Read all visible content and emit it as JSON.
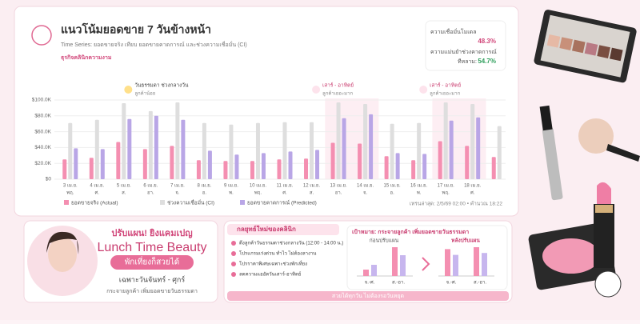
{
  "header": {
    "title": "แนวโน้มยอดขาย 7 วันข้างหน้า",
    "subtitle": "Time Series: ยอดขายจริง เทียบ ยอดขายคาดการณ์ และช่วงความเชื่อมั่น (CI)",
    "business": "ธุรกิจคลินิกความงาม"
  },
  "metrics": [
    {
      "label": "ความเชื่อมั่นโมเดล",
      "value": "48.3%"
    },
    {
      "label": "ความแม่นยำช่วงคาดการณ์",
      "sub": "ทีหลาม:",
      "value": "54.7%"
    }
  ],
  "chart_data": {
    "type": "bar",
    "categories": [
      "3 เม.ย.",
      "4 เม.ย.",
      "5 เม.ย.",
      "6 เม.ย.",
      "7 เม.ย.",
      "8 เม.ย.",
      "9 เม.ย.",
      "10 เม.ย.",
      "11 เม.ย.",
      "12 เม.ย.",
      "13 เม.ย.",
      "14 เม.ย.",
      "15 เม.ย.",
      "16 เม.ย.",
      "17 เม.ย.",
      "18 เม.ย.",
      null
    ],
    "weekdays": [
      "พฤ.",
      "ศ.",
      "ส.",
      "อา.",
      "จ.",
      "อ.",
      "พ.",
      "พฤ.",
      "ศ.",
      "ส.",
      "อา.",
      "จ.",
      "อ.",
      "พ.",
      "พฤ.",
      "ศ.",
      null
    ],
    "series": [
      {
        "name": "ยอดขายจริง (Actual)",
        "color": "#f48fb1",
        "values": [
          25000,
          27000,
          47000,
          38000,
          42000,
          24000,
          23000,
          23000,
          25000,
          26000,
          46000,
          45000,
          29000,
          24000,
          48000,
          42000,
          28000
        ]
      },
      {
        "name": "ช่วงความเชื่อมั่น (CI)",
        "color": "#dedede",
        "values": [
          71000,
          75000,
          96000,
          86000,
          97000,
          71000,
          69000,
          71000,
          72000,
          72000,
          97000,
          95000,
          70000,
          71000,
          97000,
          95000,
          67000
        ]
      },
      {
        "name": "ยอดขายคาดการณ์ (Predicted)",
        "color": "#b9a6e6",
        "values": [
          39000,
          38000,
          76000,
          80000,
          75000,
          36000,
          31000,
          33000,
          35000,
          37000,
          77000,
          82000,
          33000,
          32000,
          74000,
          78000,
          null
        ]
      }
    ],
    "ylim": [
      0,
      100000
    ],
    "yticks": [
      {
        "value": 0,
        "label": "$0"
      },
      {
        "value": 20000,
        "label": "$20.0K"
      },
      {
        "value": 40000,
        "label": "$40.0K"
      },
      {
        "value": 60000,
        "label": "$60.0K"
      },
      {
        "value": 80000,
        "label": "$80.0K"
      },
      {
        "value": 100000,
        "label": "$100.0K"
      }
    ],
    "grid": true,
    "highlight_ranges": [
      [
        10,
        11
      ],
      [
        14,
        15
      ]
    ],
    "annotations": [
      {
        "text": "วันธรรมดา ช่วงกลางวัน",
        "note": "ลูกค้าน้อย",
        "at": 3
      },
      {
        "text": "เสาร์ - อาทิตย์",
        "note": "ลูกค้าเยอะมาก",
        "at": 10
      },
      {
        "text": "เสาร์ - อาทิตย์",
        "note": "ลูกค้าเยอะมาก",
        "at": 14
      }
    ],
    "footnote": "เทรนล่าสุด: 2/5/69 02:00 • คำนวณ 18:22"
  },
  "promo": {
    "headline": "ปรับแผน! ยิงแคมเปญ",
    "title": "Lunch Time Beauty",
    "badge": "พักเที่ยงก็สวยได้",
    "days": "เฉพาะวันจันทร์ - ศุกร์",
    "note": "กระจายลูกค้า เพิ่มยอดขายวันธรรมดา"
  },
  "strategy": {
    "title": "กลยุทธ์ใหม่ของคลินิก",
    "items": [
      "ดึงลูกค้าวันธรรมดาช่วงกลางวัน (12:00 - 14:00 น.)",
      "โปรแกรมเร่งด่วน ทำไว ไม่ต้องลางาน",
      "โปรราคาพิเศษเฉพาะช่วงพักเที่ยง",
      "ลดความแออัดวันเสาร์-อาทิตย์"
    ],
    "goal": "เป้าหมาย: กระจายลูกค้า เพิ่มยอดขายวันธรรมดา",
    "mini_charts": [
      {
        "title": "ก่อนปรับแผน",
        "groups": [
          {
            "label": "จ.-ศ.",
            "values": [
              8,
              14
            ]
          },
          {
            "label": "ส.-อา.",
            "values": [
              36,
              26
            ]
          }
        ]
      },
      {
        "title": "หลังปรับแผน",
        "groups": [
          {
            "label": "จ.-ศ.",
            "values": [
              28,
              22
            ]
          },
          {
            "label": "ส.-อา.",
            "values": [
              30,
              24
            ]
          }
        ]
      }
    ],
    "footer": "สวยได้ทุกวัน ไม่ต้องรอวันหยุด"
  }
}
